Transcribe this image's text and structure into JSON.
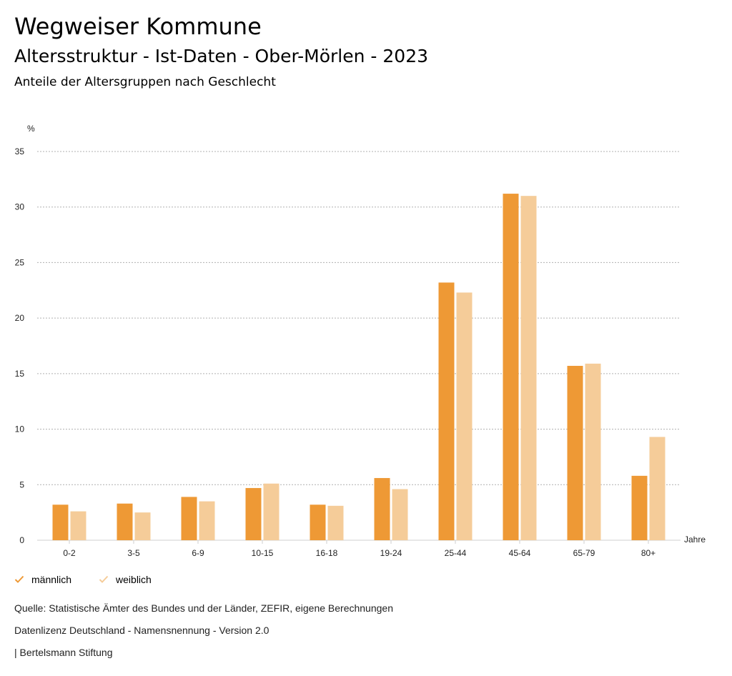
{
  "header": {
    "title": "Wegweiser Kommune",
    "subtitle": "Altersstruktur - Ist-Daten - Ober-Mörlen - 2023",
    "chart_heading": "Anteile der Altersgruppen nach Geschlecht"
  },
  "chart_data": {
    "type": "bar",
    "title": "Anteile der Altersgruppen nach Geschlecht",
    "ylabel": "%",
    "xlabel": "Jahre",
    "ylim": [
      0,
      35
    ],
    "yticks": [
      0,
      5,
      10,
      15,
      20,
      25,
      30,
      35
    ],
    "grid": true,
    "categories": [
      "0-2",
      "3-5",
      "6-9",
      "10-15",
      "16-18",
      "19-24",
      "25-44",
      "45-64",
      "65-79",
      "80+"
    ],
    "series": [
      {
        "name": "männlich",
        "color": "#ee9935",
        "values": [
          3.2,
          3.3,
          3.9,
          4.7,
          3.2,
          5.6,
          23.2,
          31.2,
          15.7,
          5.8
        ]
      },
      {
        "name": "weiblich",
        "color": "#f5cc99",
        "values": [
          2.6,
          2.5,
          3.5,
          5.1,
          3.1,
          4.6,
          22.3,
          31.0,
          15.9,
          9.3
        ]
      }
    ],
    "legend_position": "bottom-left"
  },
  "legend": {
    "male_label": "männlich",
    "female_label": "weiblich",
    "male_color": "#ee9935",
    "female_color": "#f5cc99"
  },
  "footer": {
    "source": "Quelle: Statistische Ämter des Bundes und der Länder, ZEFIR, eigene Berechnungen",
    "license": "Datenlizenz Deutschland - Namensnennung - Version 2.0",
    "publisher": "| Bertelsmann Stiftung"
  }
}
